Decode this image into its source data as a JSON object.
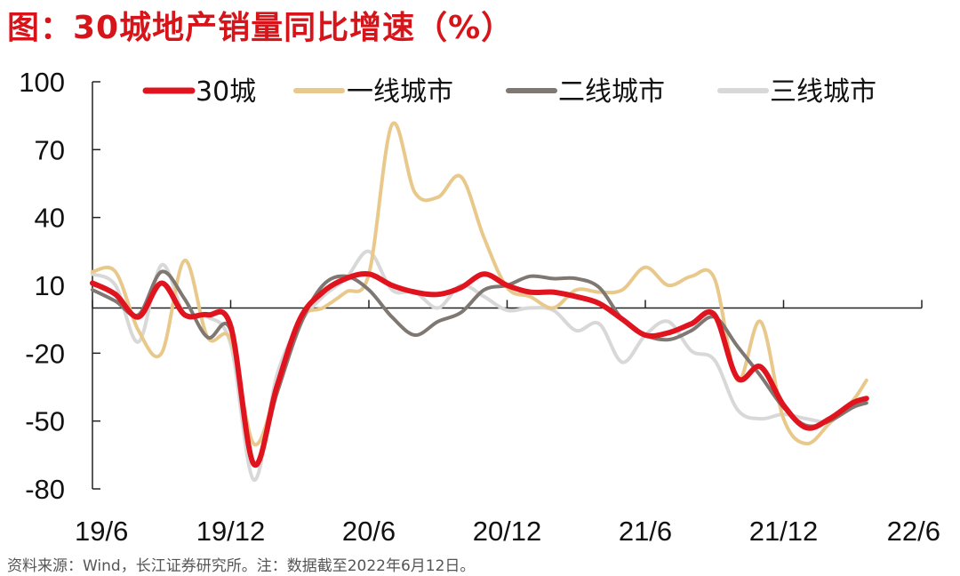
{
  "header": {
    "title": "图：30城地产销量同比增速（%）"
  },
  "footer": {
    "source": "资料来源：Wind，长江证券研究所。注：数据截至2022年6月12日。"
  },
  "chart_data": {
    "type": "line",
    "title": "图：30城地产销量同比增速（%）",
    "xlabel": "",
    "ylabel": "",
    "ylim": [
      -80,
      100
    ],
    "yticks": [
      100,
      70,
      40,
      10,
      -20,
      -50,
      -80
    ],
    "xlim": [
      0,
      36
    ],
    "xticks": [
      {
        "x": 0,
        "label": "19/6"
      },
      {
        "x": 6,
        "label": "19/12"
      },
      {
        "x": 12,
        "label": "20/6"
      },
      {
        "x": 18,
        "label": "20/12"
      },
      {
        "x": 24,
        "label": "21/6"
      },
      {
        "x": 30,
        "label": "21/12"
      },
      {
        "x": 36,
        "label": "22/6"
      }
    ],
    "series": [
      {
        "name": "30城",
        "color": "#e0141e",
        "points": [
          [
            0,
            11
          ],
          [
            1,
            6
          ],
          [
            2,
            -4
          ],
          [
            3,
            11
          ],
          [
            4,
            -3
          ],
          [
            5,
            -3
          ],
          [
            6,
            -8
          ],
          [
            7,
            -69
          ],
          [
            8,
            -35
          ],
          [
            9,
            -5
          ],
          [
            10,
            7
          ],
          [
            11,
            13
          ],
          [
            12,
            15
          ],
          [
            13,
            10
          ],
          [
            14,
            7
          ],
          [
            15,
            6
          ],
          [
            16,
            9
          ],
          [
            17,
            15
          ],
          [
            18,
            10
          ],
          [
            19,
            7
          ],
          [
            20,
            7
          ],
          [
            21,
            5
          ],
          [
            22,
            2
          ],
          [
            23,
            -5
          ],
          [
            24,
            -12
          ],
          [
            25,
            -11
          ],
          [
            26,
            -7
          ],
          [
            27,
            -3
          ],
          [
            28,
            -31
          ],
          [
            29,
            -26
          ],
          [
            30,
            -43
          ],
          [
            31,
            -53
          ],
          [
            32,
            -49
          ],
          [
            33,
            -42
          ],
          [
            33.6,
            -40
          ]
        ]
      },
      {
        "name": "一线城市",
        "color": "#e9c98b",
        "points": [
          [
            0,
            16
          ],
          [
            1,
            16
          ],
          [
            2,
            -10
          ],
          [
            3,
            -20
          ],
          [
            4,
            21
          ],
          [
            5,
            -13
          ],
          [
            6,
            -14
          ],
          [
            7,
            -60
          ],
          [
            8,
            -36
          ],
          [
            9,
            -5
          ],
          [
            10,
            0
          ],
          [
            11,
            7
          ],
          [
            12,
            15
          ],
          [
            13,
            81
          ],
          [
            14,
            51
          ],
          [
            15,
            49
          ],
          [
            16,
            58
          ],
          [
            17,
            31
          ],
          [
            18,
            9
          ],
          [
            19,
            5
          ],
          [
            20,
            0
          ],
          [
            21,
            8
          ],
          [
            22,
            7
          ],
          [
            23,
            8
          ],
          [
            24,
            18
          ],
          [
            25,
            10
          ],
          [
            26,
            14
          ],
          [
            27,
            13
          ],
          [
            28,
            -32
          ],
          [
            29,
            -6
          ],
          [
            30,
            -49
          ],
          [
            31,
            -60
          ],
          [
            32,
            -51
          ],
          [
            33,
            -41
          ],
          [
            33.6,
            -32
          ]
        ]
      },
      {
        "name": "二线城市",
        "color": "#7f7872",
        "points": [
          [
            0,
            8
          ],
          [
            1,
            3
          ],
          [
            2,
            -3
          ],
          [
            3,
            16
          ],
          [
            4,
            4
          ],
          [
            5,
            -13
          ],
          [
            6,
            -10
          ],
          [
            7,
            -69
          ],
          [
            8,
            -38
          ],
          [
            9,
            -8
          ],
          [
            10,
            10
          ],
          [
            11,
            14
          ],
          [
            12,
            8
          ],
          [
            13,
            -4
          ],
          [
            14,
            -12
          ],
          [
            15,
            -6
          ],
          [
            16,
            -2
          ],
          [
            17,
            8
          ],
          [
            18,
            10
          ],
          [
            19,
            14
          ],
          [
            20,
            13
          ],
          [
            21,
            13
          ],
          [
            22,
            9
          ],
          [
            23,
            -5
          ],
          [
            24,
            -12
          ],
          [
            25,
            -14
          ],
          [
            26,
            -10
          ],
          [
            27,
            -4
          ],
          [
            28,
            -17
          ],
          [
            29,
            -30
          ],
          [
            30,
            -44
          ],
          [
            31,
            -52
          ],
          [
            32,
            -50
          ],
          [
            33,
            -44
          ],
          [
            33.6,
            -42
          ]
        ]
      },
      {
        "name": "三线城市",
        "color": "#d8d8d8",
        "points": [
          [
            0,
            15
          ],
          [
            1,
            10
          ],
          [
            2,
            -15
          ],
          [
            3,
            19
          ],
          [
            4,
            -3
          ],
          [
            5,
            -4
          ],
          [
            6,
            -16
          ],
          [
            7,
            -76
          ],
          [
            8,
            -30
          ],
          [
            9,
            -7
          ],
          [
            10,
            5
          ],
          [
            11,
            13
          ],
          [
            12,
            25
          ],
          [
            13,
            8
          ],
          [
            14,
            7
          ],
          [
            15,
            0
          ],
          [
            16,
            10
          ],
          [
            17,
            5
          ],
          [
            18,
            -1
          ],
          [
            19,
            0
          ],
          [
            20,
            -1
          ],
          [
            21,
            -10
          ],
          [
            22,
            -7
          ],
          [
            23,
            -24
          ],
          [
            24,
            -12
          ],
          [
            25,
            -6
          ],
          [
            26,
            -19
          ],
          [
            27,
            -23
          ],
          [
            28,
            -45
          ],
          [
            29,
            -49
          ],
          [
            30,
            -47
          ],
          [
            31,
            -49
          ],
          [
            32,
            -50
          ],
          [
            33,
            -42
          ],
          [
            33.6,
            -40
          ]
        ]
      }
    ],
    "legend": {
      "position": "top",
      "entries": [
        "30城",
        "一线城市",
        "二线城市",
        "三线城市"
      ]
    }
  }
}
